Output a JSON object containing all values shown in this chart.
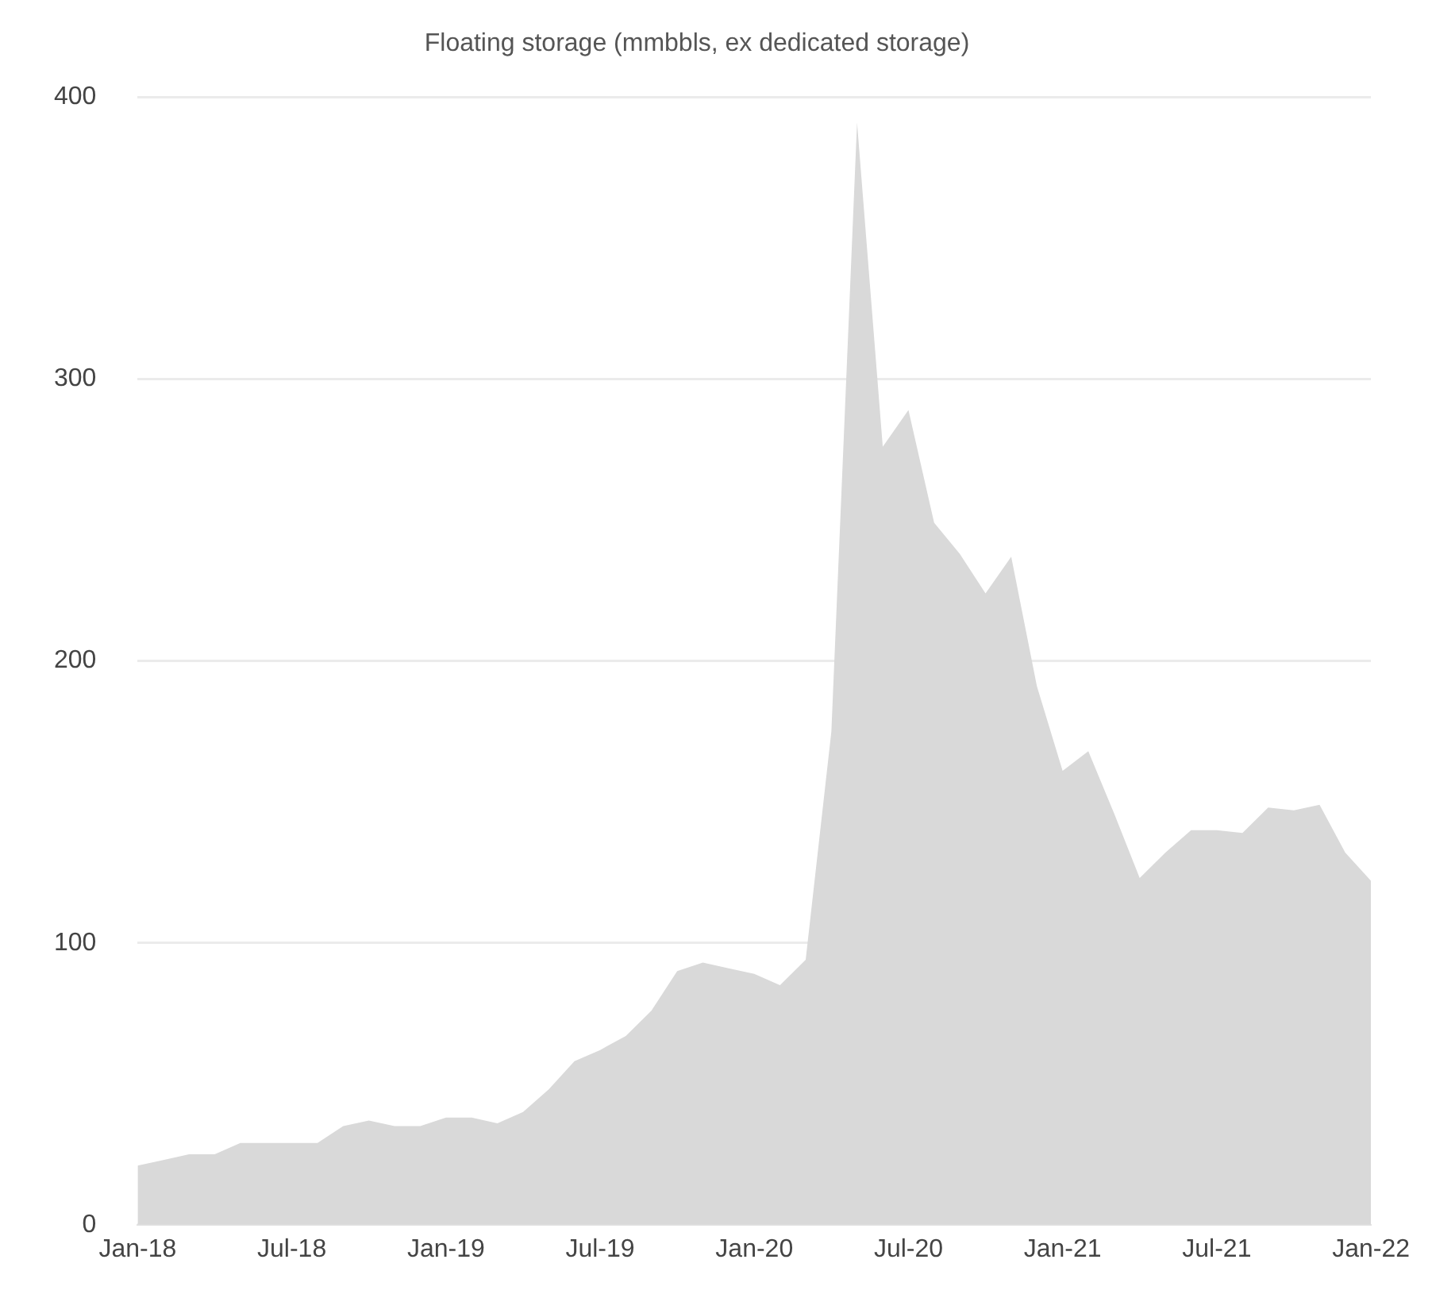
{
  "chart_data": {
    "type": "area",
    "title": "Floating storage (mmbbls, ex dedicated storage)",
    "categories": [
      "Jan-18",
      null,
      null,
      null,
      null,
      null,
      "Jul-18",
      null,
      null,
      null,
      null,
      null,
      "Jan-19",
      null,
      null,
      null,
      null,
      null,
      "Jul-19",
      null,
      null,
      null,
      null,
      null,
      "Jan-20",
      null,
      null,
      null,
      null,
      null,
      "Jul-20",
      null,
      null,
      null,
      null,
      null,
      "Jan-21",
      null,
      null,
      null,
      null,
      null,
      "Jul-21",
      null,
      null,
      null,
      null,
      null,
      "Jan-22"
    ],
    "series": [
      {
        "color": "#d9d9d9",
        "values": [
          21,
          23,
          25,
          25,
          29,
          29,
          29,
          29,
          35,
          37,
          35,
          35,
          38,
          38,
          36,
          40,
          48,
          58,
          62,
          67,
          76,
          90,
          93,
          91,
          89,
          85,
          94,
          175,
          391,
          276,
          289,
          249,
          238,
          224,
          237,
          191,
          161,
          168,
          146,
          123,
          132,
          140,
          140,
          139,
          148,
          147,
          149,
          132,
          122
        ]
      }
    ],
    "ylim": [
      0,
      400
    ],
    "yticks": [
      0,
      100,
      200,
      300,
      400
    ],
    "grid": "y",
    "legend": false
  }
}
